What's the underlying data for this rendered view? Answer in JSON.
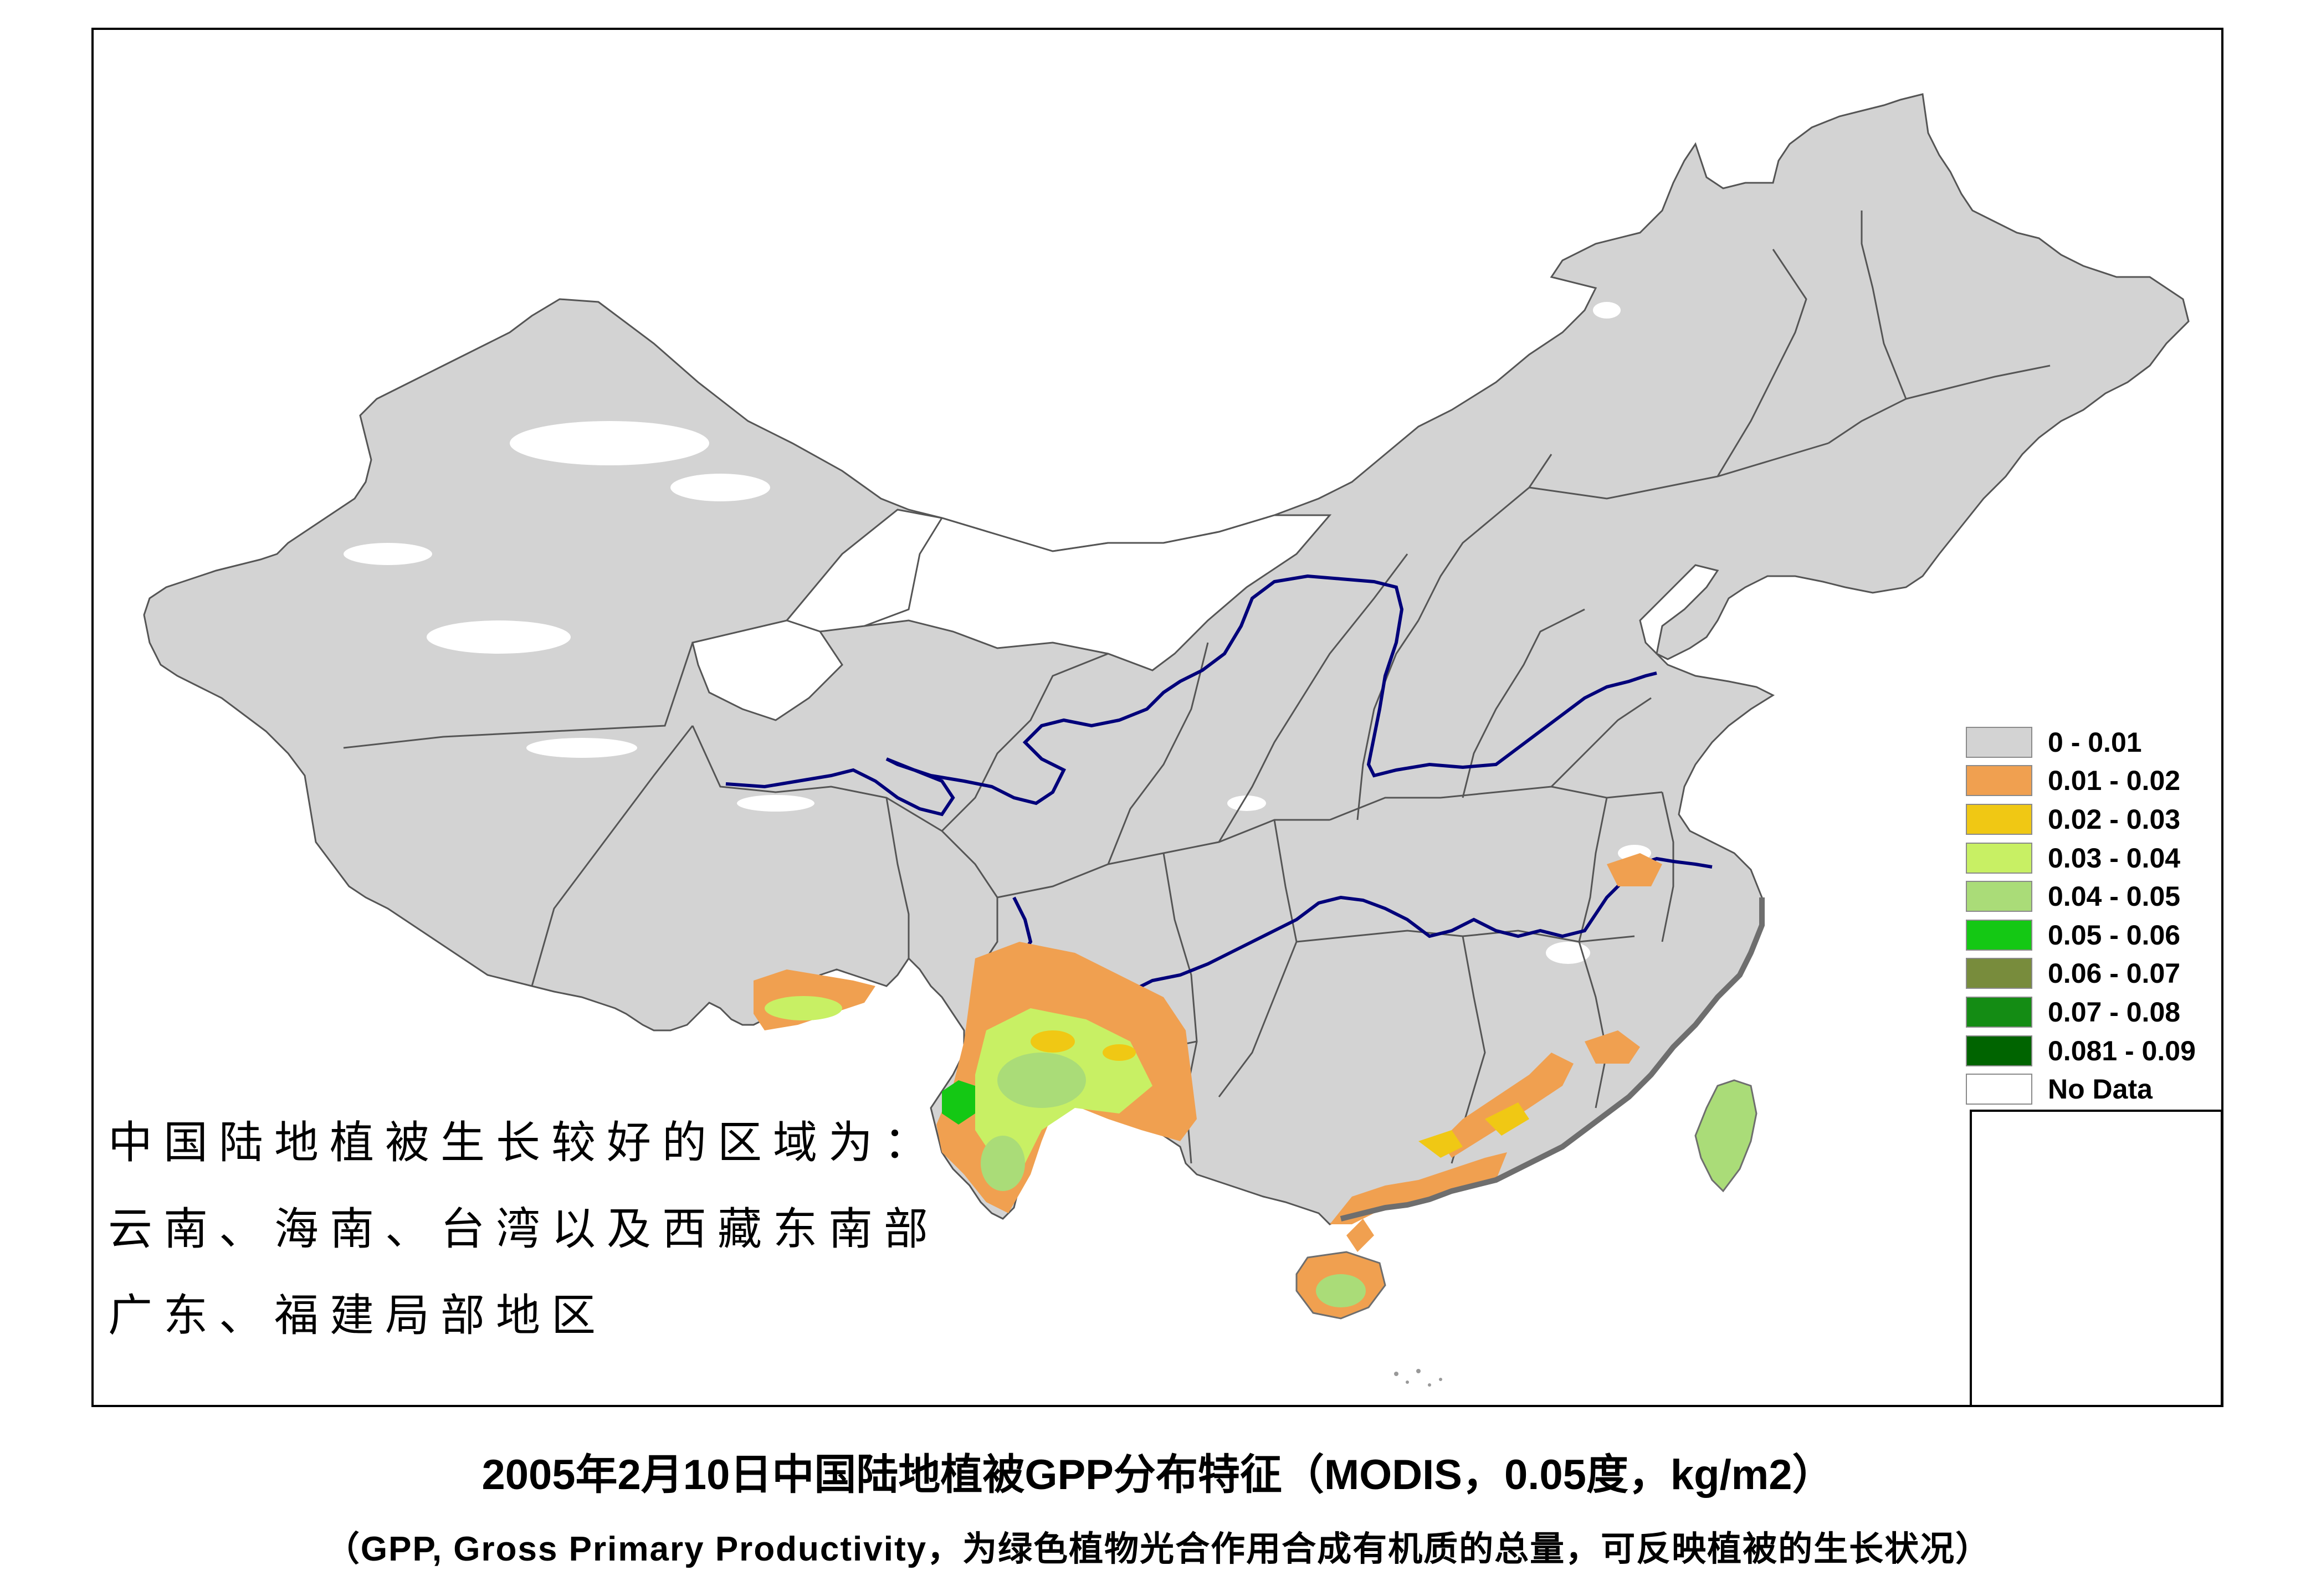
{
  "title": "2005年2月10日中国陆地植被GPP分布特征（MODIS，0.05度，kg/m2）",
  "subtitle": "（GPP, Gross Primary Productivity，为绿色植物光合作用合成有机质的总量，可反映植被的生长状况）",
  "annotation": [
    "中国陆地植被生长较好的区域为：",
    "云南、海南、台湾以及西藏东南部",
    "广东、福建局部地区"
  ],
  "legend": [
    {
      "label": "0 - 0.01",
      "color": "#d3d3d3"
    },
    {
      "label": "0.01 - 0.02",
      "color": "#f0a050"
    },
    {
      "label": "0.02 - 0.03",
      "color": "#f0c814"
    },
    {
      "label": "0.03 - 0.04",
      "color": "#c8f064"
    },
    {
      "label": "0.04 - 0.05",
      "color": "#aadc78"
    },
    {
      "label": "0.05 - 0.06",
      "color": "#14c814"
    },
    {
      "label": "0.06 - 0.07",
      "color": "#788c3c"
    },
    {
      "label": "0.07 - 0.08",
      "color": "#148c14"
    },
    {
      "label": "0.081 - 0.09",
      "color": "#006400"
    },
    {
      "label": "No Data",
      "color": "#ffffff"
    }
  ],
  "colors": {
    "land_base": "#d3d3d3",
    "no_data": "#ffffff",
    "river": "#00007a",
    "boundary": "#555555",
    "coast": "#6e6e6e"
  }
}
